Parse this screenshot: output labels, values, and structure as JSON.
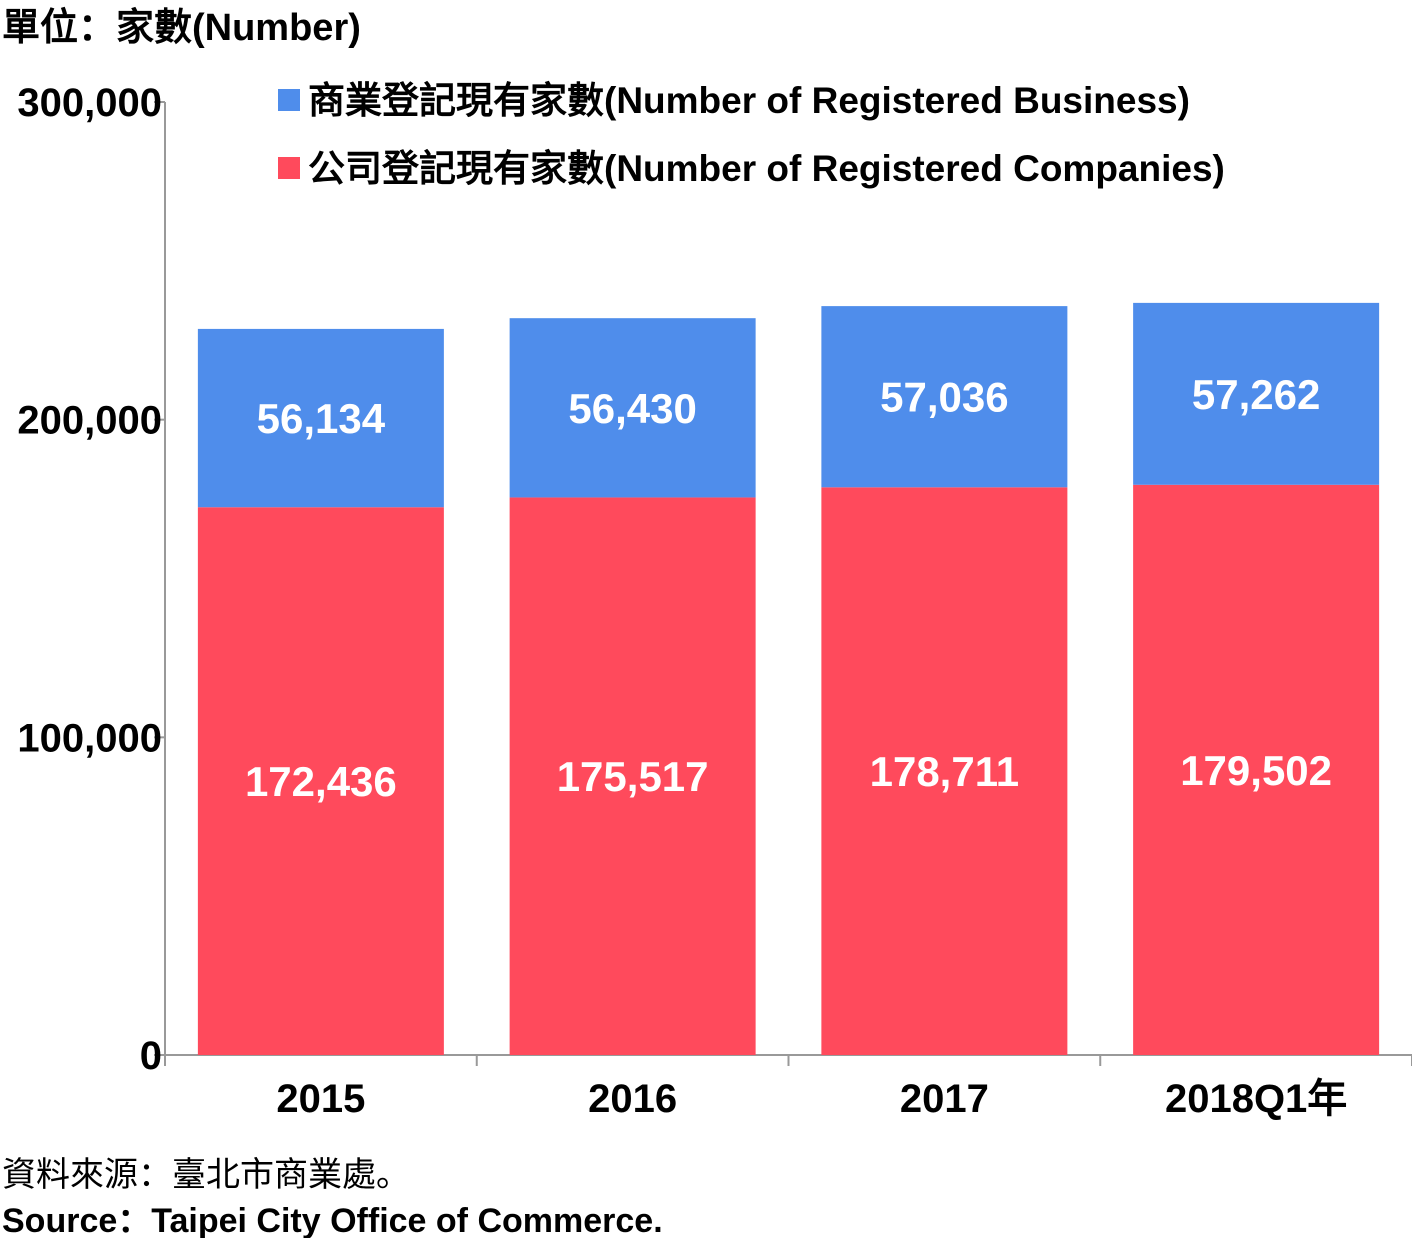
{
  "unit_label": "單位：家數(Number)",
  "source": {
    "zh": "資料來源：臺北市商業處。",
    "en": "Source：Taipei City Office of Commerce."
  },
  "colors": {
    "business": "#4f8deb",
    "companies": "#ff4a5c",
    "axis": "#999999"
  },
  "chart_data": {
    "type": "bar",
    "stacked": true,
    "categories": [
      "2015",
      "2016",
      "2017",
      "2018Q1年"
    ],
    "series": [
      {
        "name": "公司登記現有家數(Number of Registered Companies)",
        "color_key": "companies",
        "values": [
          172436,
          175517,
          178711,
          179502
        ],
        "labels": [
          "172,436",
          "175,517",
          "178,711",
          "179,502"
        ]
      },
      {
        "name": "商業登記現有家數(Number of Registered Business)",
        "color_key": "business",
        "values": [
          56134,
          56430,
          57036,
          57262
        ],
        "labels": [
          "56,134",
          "56,430",
          "57,036",
          "57,262"
        ]
      }
    ],
    "ylim": [
      0,
      300000
    ],
    "yticks": [
      0,
      100000,
      200000,
      300000
    ],
    "ytick_labels": [
      "0",
      "100,000",
      "200,000",
      "300,000"
    ],
    "grid": false,
    "legend_position": "top",
    "legend_order": [
      1,
      0
    ]
  }
}
